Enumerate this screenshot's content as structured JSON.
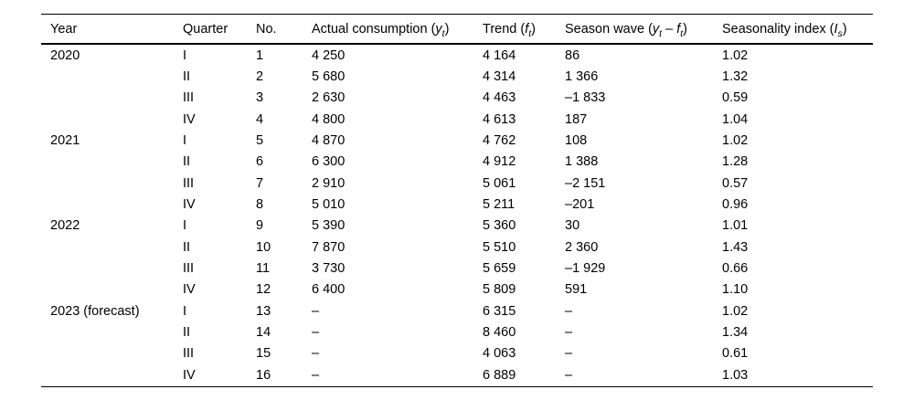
{
  "page": {
    "background_color": "#ffffff",
    "text_color": "#000000",
    "rule_color": "#000000"
  },
  "table": {
    "columns": [
      {
        "key": "year",
        "segments": [
          {
            "t": "Year",
            "s": "n"
          }
        ]
      },
      {
        "key": "quarter",
        "segments": [
          {
            "t": "Quarter",
            "s": "n"
          }
        ]
      },
      {
        "key": "no",
        "segments": [
          {
            "t": "No.",
            "s": "n"
          }
        ]
      },
      {
        "key": "actual",
        "segments": [
          {
            "t": "Actual consumption (",
            "s": "n"
          },
          {
            "t": "y",
            "s": "i"
          },
          {
            "t": "t",
            "s": "is"
          },
          {
            "t": ")",
            "s": "n"
          }
        ]
      },
      {
        "key": "trend",
        "segments": [
          {
            "t": "Trend (",
            "s": "n"
          },
          {
            "t": "f",
            "s": "i"
          },
          {
            "t": "t",
            "s": "is"
          },
          {
            "t": ")",
            "s": "n"
          }
        ]
      },
      {
        "key": "season",
        "segments": [
          {
            "t": "Season wave (",
            "s": "n"
          },
          {
            "t": "y",
            "s": "i"
          },
          {
            "t": "t",
            "s": "is"
          },
          {
            "t": " – ",
            "s": "n"
          },
          {
            "t": "f",
            "s": "i"
          },
          {
            "t": "t",
            "s": "is"
          },
          {
            "t": ")",
            "s": "n"
          }
        ]
      },
      {
        "key": "index",
        "segments": [
          {
            "t": "Seasonality index (",
            "s": "n"
          },
          {
            "t": "I",
            "s": "i"
          },
          {
            "t": "s",
            "s": "is"
          },
          {
            "t": ")",
            "s": "n"
          }
        ]
      }
    ],
    "rows": [
      {
        "year": "2020",
        "quarter": "I",
        "no": "1",
        "actual": "4 250",
        "trend": "4 164",
        "season": "86",
        "index": "1.02"
      },
      {
        "year": "",
        "quarter": "II",
        "no": "2",
        "actual": "5 680",
        "trend": "4 314",
        "season": "1 366",
        "index": "1.32"
      },
      {
        "year": "",
        "quarter": "III",
        "no": "3",
        "actual": "2 630",
        "trend": "4 463",
        "season": "–1 833",
        "index": "0.59"
      },
      {
        "year": "",
        "quarter": "IV",
        "no": "4",
        "actual": "4 800",
        "trend": "4 613",
        "season": "187",
        "index": "1.04"
      },
      {
        "year": "2021",
        "quarter": "I",
        "no": "5",
        "actual": "4 870",
        "trend": "4 762",
        "season": "108",
        "index": "1.02"
      },
      {
        "year": "",
        "quarter": "II",
        "no": "6",
        "actual": "6 300",
        "trend": "4 912",
        "season": "1 388",
        "index": "1.28"
      },
      {
        "year": "",
        "quarter": "III",
        "no": "7",
        "actual": "2 910",
        "trend": "5 061",
        "season": "–2 151",
        "index": "0.57"
      },
      {
        "year": "",
        "quarter": "IV",
        "no": "8",
        "actual": "5 010",
        "trend": "5 211",
        "season": "–201",
        "index": "0.96"
      },
      {
        "year": "2022",
        "quarter": "I",
        "no": "9",
        "actual": "5 390",
        "trend": "5 360",
        "season": "30",
        "index": "1.01"
      },
      {
        "year": "",
        "quarter": "II",
        "no": "10",
        "actual": "7 870",
        "trend": "5 510",
        "season": "2 360",
        "index": "1.43"
      },
      {
        "year": "",
        "quarter": "III",
        "no": "11",
        "actual": "3 730",
        "trend": "5 659",
        "season": "–1 929",
        "index": "0.66"
      },
      {
        "year": "",
        "quarter": "IV",
        "no": "12",
        "actual": "6 400",
        "trend": "5 809",
        "season": "591",
        "index": "1.10"
      },
      {
        "year": "2023 (forecast)",
        "quarter": "I",
        "no": "13",
        "actual": "–",
        "trend": "6 315",
        "season": "–",
        "index": "1.02"
      },
      {
        "year": "",
        "quarter": "II",
        "no": "14",
        "actual": "–",
        "trend": "8 460",
        "season": "–",
        "index": "1.34"
      },
      {
        "year": "",
        "quarter": "III",
        "no": "15",
        "actual": "–",
        "trend": "4 063",
        "season": "–",
        "index": "0.61"
      },
      {
        "year": "",
        "quarter": "IV",
        "no": "16",
        "actual": "–",
        "trend": "6 889",
        "season": "–",
        "index": "1.03"
      }
    ]
  }
}
